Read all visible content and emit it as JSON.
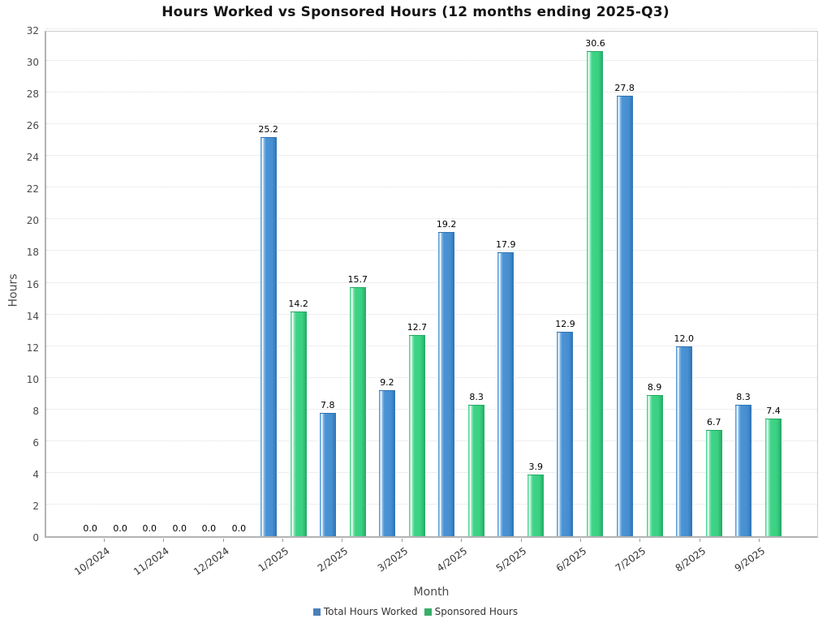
{
  "title": "Hours Worked vs Sponsored Hours (12 months ending 2025-Q3)",
  "chart_data": {
    "type": "bar",
    "title": "Hours Worked vs Sponsored Hours (12 months ending 2025-Q3)",
    "xlabel": "Month",
    "ylabel": "Hours",
    "ylim": [
      0,
      32
    ],
    "ytick_step": 2,
    "grid": "horizontal-dotted",
    "legend_position": "bottom-center",
    "value_labels_shown": true,
    "categories": [
      "10/2024",
      "11/2024",
      "12/2024",
      "1/2025",
      "2/2025",
      "3/2025",
      "4/2025",
      "5/2025",
      "6/2025",
      "7/2025",
      "8/2025",
      "9/2025"
    ],
    "series": [
      {
        "name": "Total Hours Worked",
        "color": "#4b93d5",
        "legend_color": "#4a80ba",
        "values": [
          0.0,
          0.0,
          0.0,
          25.2,
          7.8,
          9.2,
          19.2,
          17.9,
          12.9,
          27.8,
          12.0,
          8.3
        ]
      },
      {
        "name": "Sponsored Hours",
        "color": "#3fd487",
        "legend_color": "#38ae6a",
        "values": [
          0.0,
          0.0,
          0.0,
          14.2,
          15.7,
          12.7,
          8.3,
          3.9,
          30.6,
          8.9,
          6.7,
          7.4
        ]
      }
    ]
  }
}
